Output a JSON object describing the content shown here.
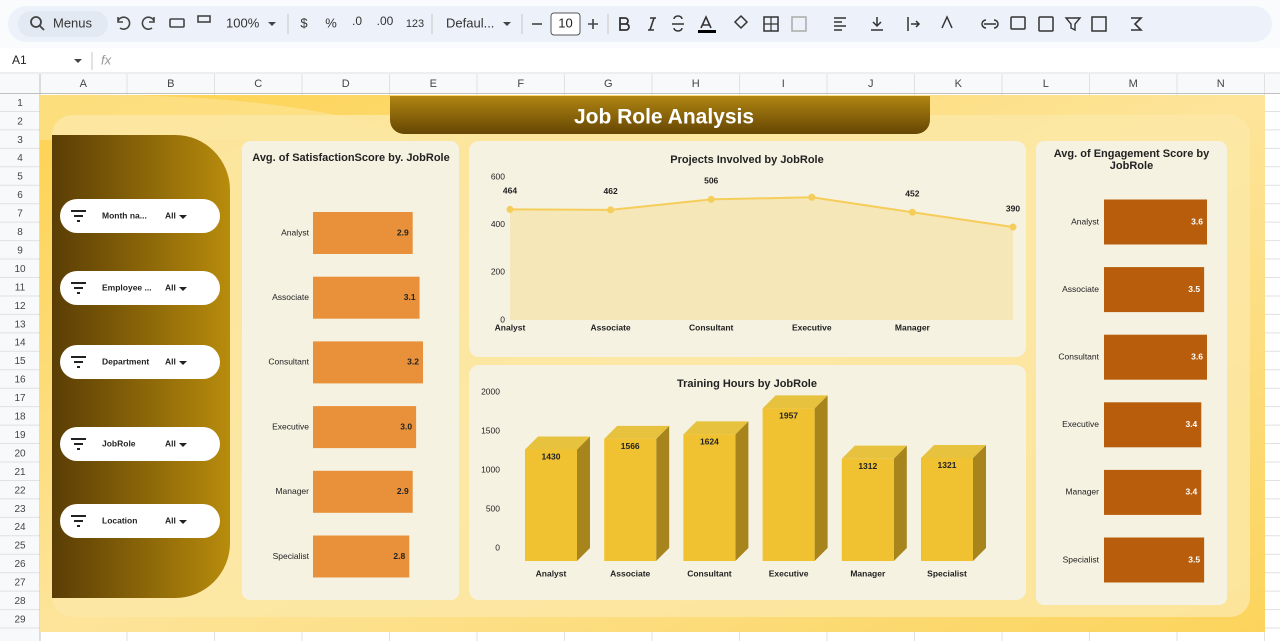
{
  "toolbar": {
    "search": "Menus",
    "zoom": "100%",
    "currency": "$",
    "percent": "%",
    "decrease_decimal": ".0",
    "increase_decimal": ".00",
    "number_format": "123",
    "font": "Defaul...",
    "font_size": "10"
  },
  "formula_bar": {
    "cell": "A1",
    "fx": "fx"
  },
  "columns": [
    "A",
    "B",
    "C",
    "D",
    "E",
    "F",
    "G",
    "H",
    "I",
    "J",
    "K",
    "L",
    "M",
    "N"
  ],
  "rows": [
    "1",
    "2",
    "3",
    "4",
    "5",
    "6",
    "7",
    "8",
    "9",
    "10",
    "11",
    "12",
    "13",
    "14",
    "15",
    "16",
    "17",
    "18",
    "19",
    "20",
    "21",
    "22",
    "23",
    "24",
    "25",
    "26",
    "27",
    "28",
    "29"
  ],
  "dashboard": {
    "title": "Job Role Analysis",
    "filters": [
      {
        "label": "Month na...",
        "value": "All"
      },
      {
        "label": "Employee ...",
        "value": "All"
      },
      {
        "label": "Department",
        "value": "All"
      },
      {
        "label": "JobRole",
        "value": "All"
      },
      {
        "label": "Location",
        "value": "All"
      }
    ]
  },
  "chart_data": [
    {
      "type": "hbar",
      "title": "Avg. of SatisfactionScore by. JobRole",
      "categories": [
        "Analyst",
        "Associate",
        "Consultant",
        "Executive",
        "Manager",
        "Specialist"
      ],
      "values": [
        2.9,
        3.1,
        3.2,
        3.0,
        2.9,
        2.8
      ],
      "value_labels": [
        "2.9",
        "3.1",
        "3.2",
        "3.0",
        "2.9",
        "2.8"
      ],
      "color": "#e8913a"
    },
    {
      "type": "line",
      "title": "Projects Involved by JobRole",
      "categories": [
        "Analyst",
        "Associate",
        "Consultant",
        "Executive",
        "Manager",
        null
      ],
      "values": [
        464,
        462,
        506,
        515,
        452,
        390
      ],
      "value_labels": [
        "464",
        "462",
        "506",
        null,
        "452",
        "390"
      ],
      "color": "#f5cd5a",
      "ylim": [
        0,
        600
      ],
      "yticks": [
        0,
        200,
        400,
        600
      ]
    },
    {
      "type": "bar3d",
      "title": "Training Hours by JobRole",
      "categories": [
        "Analyst",
        "Associate",
        "Consultant",
        "Executive",
        "Manager",
        "Specialist"
      ],
      "values": [
        1430,
        1566,
        1624,
        1957,
        1312,
        1321
      ],
      "color": "#f0c232",
      "ylim": [
        0,
        2000
      ],
      "yticks": [
        0,
        500,
        1000,
        1500,
        2000
      ]
    },
    {
      "type": "hbar",
      "title": "Avg. of Engagement Score by JobRole",
      "categories": [
        "Analyst",
        "Associate",
        "Consultant",
        "Executive",
        "Manager",
        "Specialist"
      ],
      "values": [
        3.6,
        3.5,
        3.6,
        3.4,
        3.4,
        3.5
      ],
      "value_labels": [
        "3.6",
        "3.5",
        "3.6",
        "3.4",
        "3.4",
        "3.5"
      ],
      "color": "#b85d0c"
    }
  ]
}
